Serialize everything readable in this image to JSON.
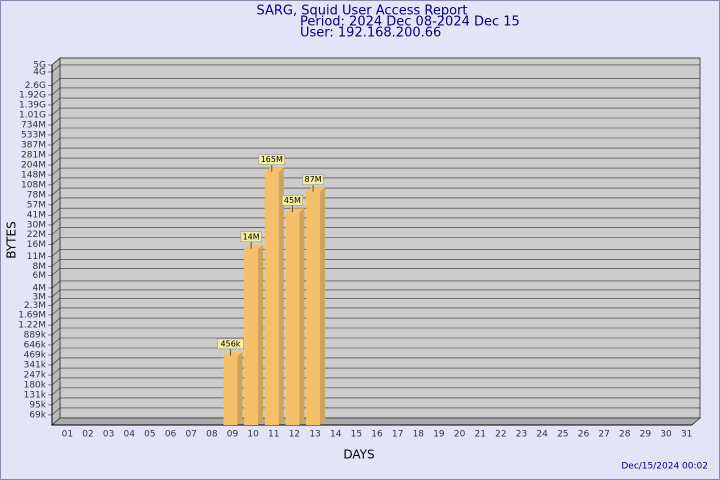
{
  "chart_data": {
    "type": "bar",
    "title": "SARG, Squid User Access Report",
    "subtitle": "Period: 2024 Dec 08-2024 Dec 15",
    "user": "User: 192.168.200.66",
    "xlabel": "DAYS",
    "ylabel": "BYTES",
    "footer": "Dec/15/2024 00:02",
    "log_scale": true,
    "grid": true,
    "color": "#f5c06a",
    "categories": [
      "01",
      "02",
      "03",
      "04",
      "05",
      "06",
      "07",
      "08",
      "09",
      "10",
      "11",
      "12",
      "13",
      "14",
      "15",
      "16",
      "17",
      "18",
      "19",
      "20",
      "21",
      "22",
      "23",
      "24",
      "25",
      "26",
      "27",
      "28",
      "29",
      "30",
      "31"
    ],
    "values": [
      null,
      null,
      null,
      null,
      null,
      null,
      null,
      null,
      456000,
      14000000,
      165000000,
      45000000,
      87000000,
      null,
      null,
      null,
      null,
      null,
      null,
      null,
      null,
      null,
      null,
      null,
      null,
      null,
      null,
      null,
      null,
      null,
      null
    ],
    "value_labels": [
      null,
      null,
      null,
      null,
      null,
      null,
      null,
      null,
      "456k",
      "14M",
      "165M",
      "45M",
      "87M",
      null,
      null,
      null,
      null,
      null,
      null,
      null,
      null,
      null,
      null,
      null,
      null,
      null,
      null,
      null,
      null,
      null,
      null
    ],
    "ylim": [
      50000,
      5000000000
    ],
    "yticks": [
      {
        "value": 69000,
        "label": "69k"
      },
      {
        "value": 95000,
        "label": "95k"
      },
      {
        "value": 131000,
        "label": "131k"
      },
      {
        "value": 180000,
        "label": "180k"
      },
      {
        "value": 247000,
        "label": "247k"
      },
      {
        "value": 341000,
        "label": "341k"
      },
      {
        "value": 469000,
        "label": "469k"
      },
      {
        "value": 646000,
        "label": "646k"
      },
      {
        "value": 889000,
        "label": "889k"
      },
      {
        "value": 1220000,
        "label": "1.22M"
      },
      {
        "value": 1690000,
        "label": "1.69M"
      },
      {
        "value": 2300000,
        "label": "2.3M"
      },
      {
        "value": 3000000,
        "label": "3M"
      },
      {
        "value": 4000000,
        "label": "4M"
      },
      {
        "value": 6000000,
        "label": "6M"
      },
      {
        "value": 8000000,
        "label": "8M"
      },
      {
        "value": 11000000,
        "label": "11M"
      },
      {
        "value": 16000000,
        "label": "16M"
      },
      {
        "value": 22000000,
        "label": "22M"
      },
      {
        "value": 30000000,
        "label": "30M"
      },
      {
        "value": 41000000,
        "label": "41M"
      },
      {
        "value": 57000000,
        "label": "57M"
      },
      {
        "value": 78000000,
        "label": "78M"
      },
      {
        "value": 108000000,
        "label": "108M"
      },
      {
        "value": 148000000,
        "label": "148M"
      },
      {
        "value": 204000000,
        "label": "204M"
      },
      {
        "value": 281000000,
        "label": "281M"
      },
      {
        "value": 387000000,
        "label": "387M"
      },
      {
        "value": 533000000,
        "label": "533M"
      },
      {
        "value": 734000000,
        "label": "734M"
      },
      {
        "value": 1010000000,
        "label": "1.01G"
      },
      {
        "value": 1390000000,
        "label": "1.39G"
      },
      {
        "value": 1920000000,
        "label": "1.92G"
      },
      {
        "value": 2600000000,
        "label": "2.6G"
      },
      {
        "value": 4000000000,
        "label": "4G"
      },
      {
        "value": 5000000000,
        "label": "5G"
      }
    ]
  }
}
